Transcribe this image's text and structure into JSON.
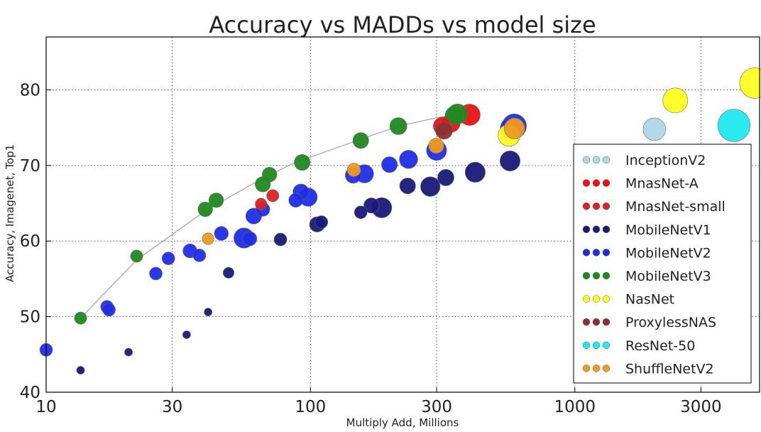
{
  "chart_data": {
    "type": "scatter",
    "title": "Accuracy vs MADDs vs model size",
    "xlabel": "Multiply Add, Millions",
    "ylabel": "Accuracy, Imagenet, Top1",
    "xscale": "log",
    "xlim": [
      10,
      5000
    ],
    "ylim": [
      40,
      87
    ],
    "x_ticks": [
      10,
      30,
      100,
      300,
      1000,
      3000
    ],
    "x_tick_labels": [
      "10",
      "30",
      "100",
      "300",
      "1000",
      "3000"
    ],
    "y_ticks": [
      40,
      50,
      60,
      70,
      80
    ],
    "y_tick_labels": [
      "40",
      "50",
      "60",
      "70",
      "80"
    ],
    "grid": true,
    "legend_position": "lower-right",
    "frontier": [
      [
        13.5,
        49.8
      ],
      [
        22,
        57.5
      ],
      [
        40,
        64
      ],
      [
        60,
        67.5
      ],
      [
        85,
        70.2
      ],
      [
        150,
        73.3
      ],
      [
        215,
        75.2
      ],
      [
        300,
        76.3
      ],
      [
        360,
        76.8
      ]
    ],
    "series": [
      {
        "name": "InceptionV2",
        "color": "#add8e6",
        "points": [
          [
            2000,
            74.8,
            3.7
          ]
        ]
      },
      {
        "name": "MnasNet-A",
        "color": "#ee1111",
        "points": [
          [
            315,
            75.2,
            2.9
          ],
          [
            340,
            75.6,
            3.0
          ],
          [
            400,
            76.7,
            3.5
          ]
        ]
      },
      {
        "name": "MnasNet-small",
        "color": "#dd2222",
        "points": [
          [
            65,
            64.9,
            1.9
          ],
          [
            72,
            66.0,
            2.0
          ]
        ]
      },
      {
        "name": "MobileNetV1",
        "color": "#1a1a7a",
        "points": [
          [
            13.5,
            42.9,
            1.3
          ],
          [
            20.5,
            45.3,
            1.3
          ],
          [
            34,
            47.6,
            1.3
          ],
          [
            41,
            50.6,
            1.3
          ],
          [
            49,
            55.8,
            1.8
          ],
          [
            77,
            60.2,
            2.1
          ],
          [
            110,
            62.5,
            2.1
          ],
          [
            106,
            62.2,
            2.5
          ],
          [
            155,
            63.8,
            2.1
          ],
          [
            170,
            64.7,
            2.5
          ],
          [
            186,
            64.4,
            3.3
          ],
          [
            233,
            67.3,
            2.6
          ],
          [
            284,
            67.2,
            3.2
          ],
          [
            325,
            68.4,
            2.7
          ],
          [
            420,
            69.1,
            3.3
          ],
          [
            569,
            70.6,
            3.3
          ]
        ]
      },
      {
        "name": "MobileNetV2",
        "color": "#1f2ee6",
        "points": [
          [
            10,
            45.6,
            2.1
          ],
          [
            17,
            51.3,
            2.1
          ],
          [
            17.3,
            50.9,
            2.1
          ],
          [
            26,
            55.7,
            2.1
          ],
          [
            29,
            57.7,
            2.1
          ],
          [
            35,
            58.7,
            2.3
          ],
          [
            38,
            58.1,
            2.1
          ],
          [
            46,
            61.0,
            2.3
          ],
          [
            56,
            60.4,
            3.3
          ],
          [
            59,
            60.3,
            2.3
          ],
          [
            61,
            63.3,
            2.6
          ],
          [
            66,
            64.2,
            2.3
          ],
          [
            88,
            65.4,
            2.3
          ],
          [
            92,
            66.5,
            2.6
          ],
          [
            98,
            65.8,
            3.0
          ],
          [
            145,
            68.7,
            2.6
          ],
          [
            160,
            68.9,
            3.0
          ],
          [
            199,
            70.1,
            2.6
          ],
          [
            235,
            70.8,
            3.0
          ],
          [
            300,
            72.0,
            3.3
          ],
          [
            575,
            74.9,
            3.6
          ],
          [
            590,
            75.2,
            4.0
          ]
        ]
      },
      {
        "name": "MobileNetV3",
        "color": "#1f8a1f",
        "points": [
          [
            13.5,
            49.8,
            2.0
          ],
          [
            22,
            58.0,
            2.0
          ],
          [
            40,
            64.2,
            2.4
          ],
          [
            44,
            65.4,
            2.4
          ],
          [
            66,
            67.5,
            2.5
          ],
          [
            70,
            68.8,
            2.4
          ],
          [
            93,
            70.4,
            2.6
          ],
          [
            155,
            73.3,
            2.6
          ],
          [
            215,
            75.2,
            2.8
          ],
          [
            350,
            76.6,
            3.0
          ],
          [
            360,
            76.8,
            3.3
          ]
        ]
      },
      {
        "name": "NasNet",
        "color": "#ffff22",
        "points": [
          [
            564,
            74.0,
            3.6
          ],
          [
            2400,
            78.6,
            4.1
          ],
          [
            4800,
            80.9,
            5.0
          ]
        ]
      },
      {
        "name": "ProxylessNAS",
        "color": "#8b3030",
        "points": [
          [
            320,
            74.6,
            2.8
          ]
        ]
      },
      {
        "name": "ResNet-50",
        "color": "#20e8f0",
        "points": [
          [
            4000,
            75.3,
            5.3
          ]
        ]
      },
      {
        "name": "ShuffleNetV2",
        "color": "#f09a20",
        "points": [
          [
            41,
            60.3,
            1.9
          ],
          [
            146,
            69.4,
            2.2
          ],
          [
            299,
            72.6,
            2.5
          ],
          [
            591,
            74.9,
            3.4
          ]
        ]
      }
    ]
  }
}
